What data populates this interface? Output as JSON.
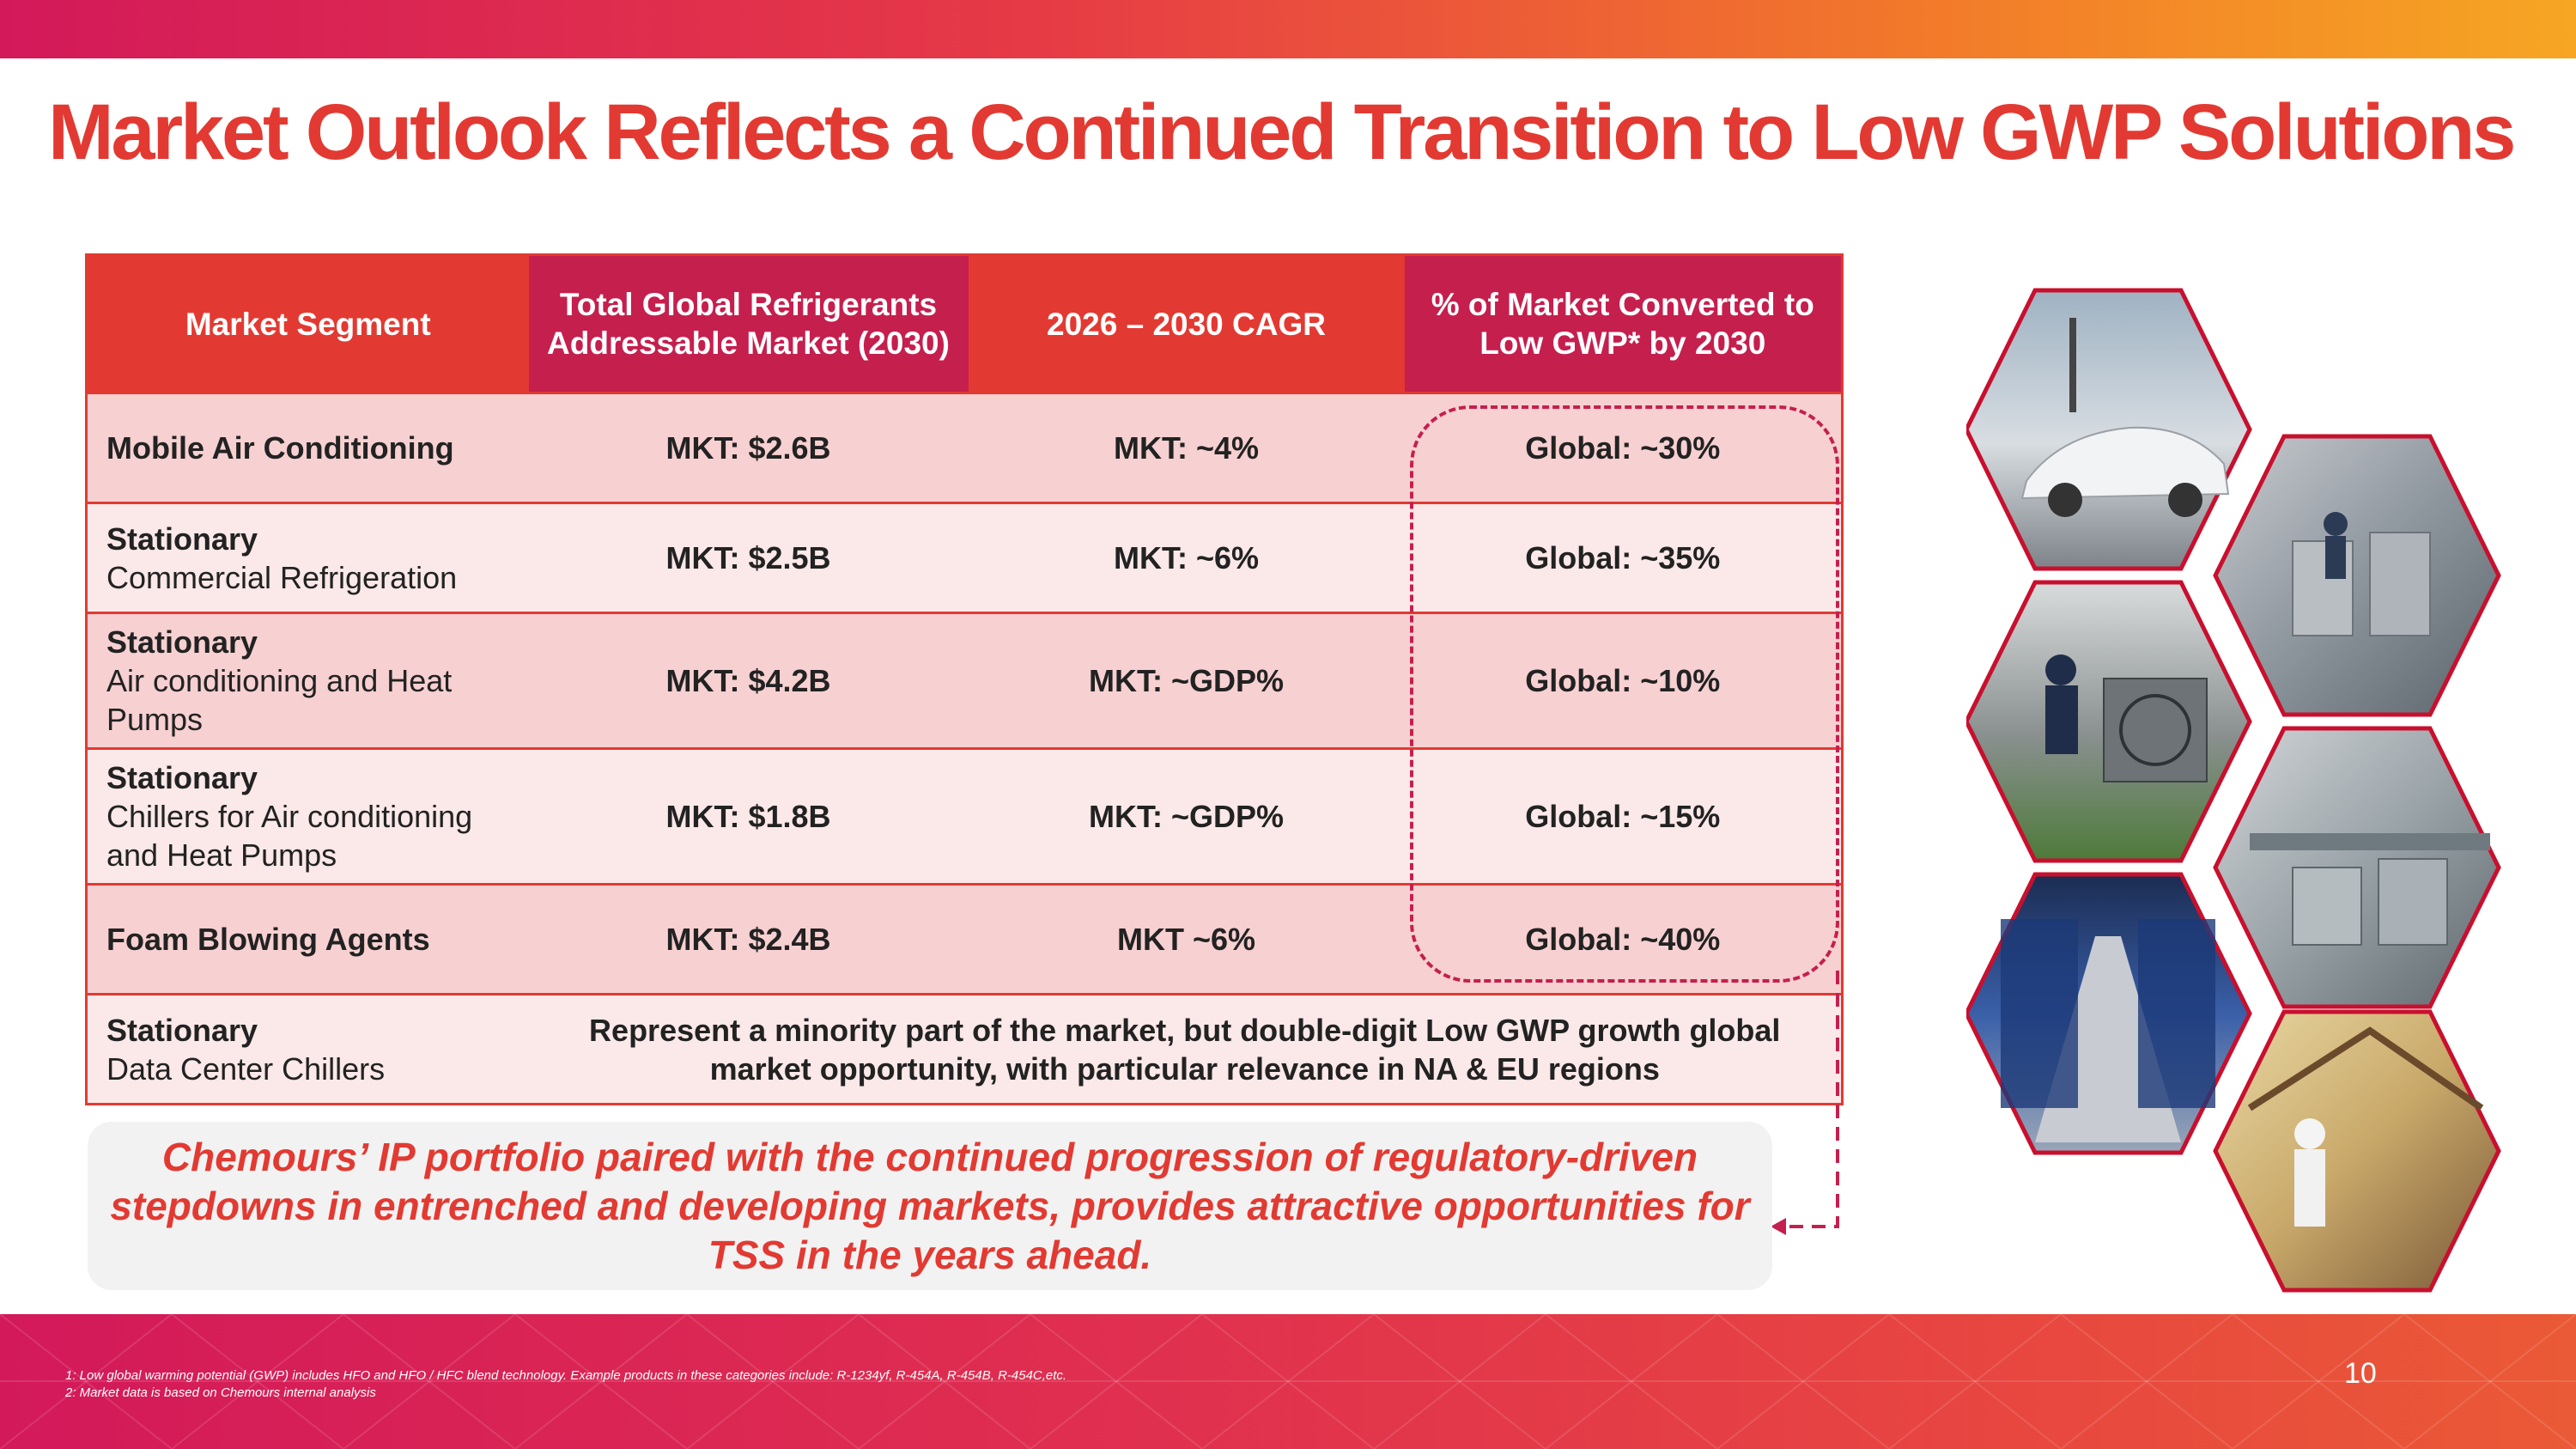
{
  "slide": {
    "title": "Market Outlook Reflects a Continued Transition to Low GWP Solutions",
    "page_number": "10",
    "colors": {
      "brand_red": "#e23a32",
      "brand_crimson": "#c51f4e",
      "row_dark": "#f7d0d1",
      "row_light": "#fbe8e8",
      "accent_orange": "#f6a623"
    }
  },
  "table": {
    "headers": [
      "Market Segment",
      "Total Global Refrigerants Addressable Market (2030)",
      "2026 – 2030 CAGR",
      "% of Market Converted to Low GWP* by 2030"
    ],
    "rows": [
      {
        "segment": "Mobile Air Conditioning",
        "subsegment": "",
        "market": "MKT: $2.6B",
        "cagr": "MKT: ~4%",
        "converted": "Global: ~30%"
      },
      {
        "segment": "Stationary",
        "subsegment": "Commercial Refrigeration",
        "market": "MKT: $2.5B",
        "cagr": "MKT: ~6%",
        "converted": "Global: ~35%"
      },
      {
        "segment": "Stationary",
        "subsegment": "Air conditioning and Heat Pumps",
        "market": "MKT: $4.2B",
        "cagr": "MKT: ~GDP%",
        "converted": "Global: ~10%"
      },
      {
        "segment": "Stationary",
        "subsegment": "Chillers for Air conditioning and Heat Pumps",
        "market": "MKT: $1.8B",
        "cagr": "MKT: ~GDP%",
        "converted": "Global: ~15%"
      },
      {
        "segment": "Foam Blowing Agents",
        "subsegment": "",
        "market": "MKT: $2.4B",
        "cagr": "MKT ~6%",
        "converted": "Global: ~40%"
      }
    ],
    "last_row": {
      "segment": "Stationary",
      "subsegment": "Data Center Chillers",
      "note": "Represent a minority part of the market, but double-digit Low GWP growth global market opportunity, with particular relevance in NA & EU regions"
    }
  },
  "callout": {
    "text": "Chemours’ IP portfolio paired with the continued progression of regulatory-driven stepdowns in entrenched and developing markets, provides attractive opportunities for TSS in the years ahead."
  },
  "images": [
    {
      "icon": "electric-car-photo"
    },
    {
      "icon": "technicians-equipment-photo"
    },
    {
      "icon": "heat-pump-technician-photo"
    },
    {
      "icon": "chiller-plant-photo"
    },
    {
      "icon": "data-center-photo"
    },
    {
      "icon": "foam-insulation-photo"
    }
  ],
  "footnotes": [
    "1: Low global warming potential (GWP) includes HFO and HFO / HFC blend technology. Example products in these categories include: R-1234yf, R-454A, R-454B, R-454C,etc.",
    "2: Market data is based on Chemours internal analysis"
  ]
}
